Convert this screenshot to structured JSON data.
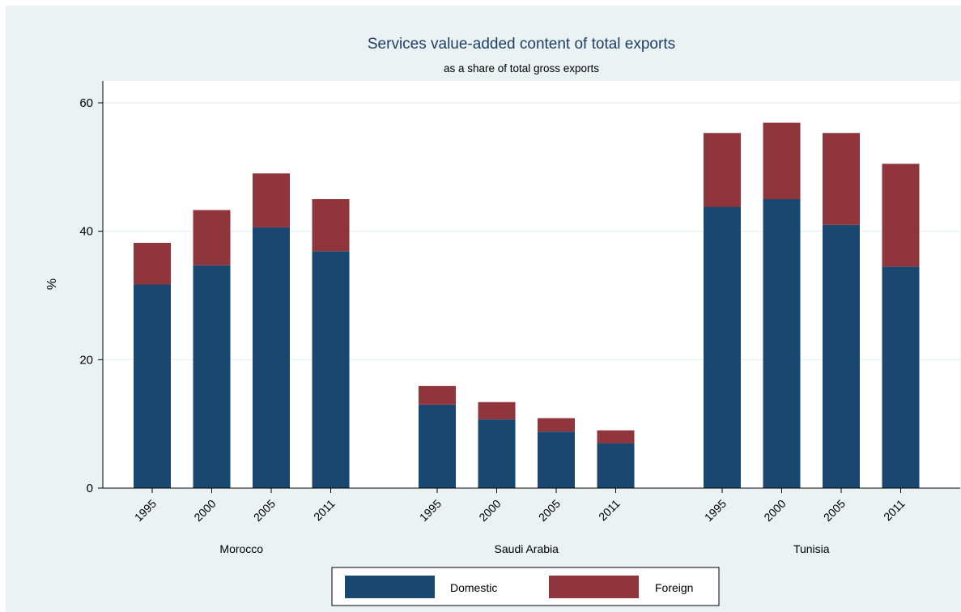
{
  "chart_data": {
    "type": "bar",
    "stacked": true,
    "title": "Services value-added content of total exports",
    "subtitle": "as a share of total gross exports",
    "ylabel": "%",
    "ylim": [
      0,
      63
    ],
    "yticks": [
      0,
      20,
      40,
      60
    ],
    "grid": true,
    "legend_position": "bottom",
    "groups": [
      {
        "name": "Morocco",
        "categories": [
          "1995",
          "2000",
          "2005",
          "2011"
        ],
        "domestic": [
          31.7,
          34.7,
          40.6,
          36.9
        ],
        "foreign": [
          6.5,
          8.6,
          8.4,
          8.1
        ]
      },
      {
        "name": "Saudi Arabia",
        "categories": [
          "1995",
          "2000",
          "2005",
          "2011"
        ],
        "domestic": [
          13.0,
          10.7,
          8.8,
          7.0
        ],
        "foreign": [
          2.9,
          2.7,
          2.1,
          2.0
        ]
      },
      {
        "name": "Tunisia",
        "categories": [
          "1995",
          "2000",
          "2005",
          "2011"
        ],
        "domestic": [
          43.8,
          45.0,
          41.0,
          34.5
        ],
        "foreign": [
          11.5,
          11.9,
          14.3,
          16.0
        ]
      }
    ],
    "series": [
      {
        "name": "Domestic",
        "color": "#1a476f"
      },
      {
        "name": "Foreign",
        "color": "#90353b"
      }
    ]
  }
}
